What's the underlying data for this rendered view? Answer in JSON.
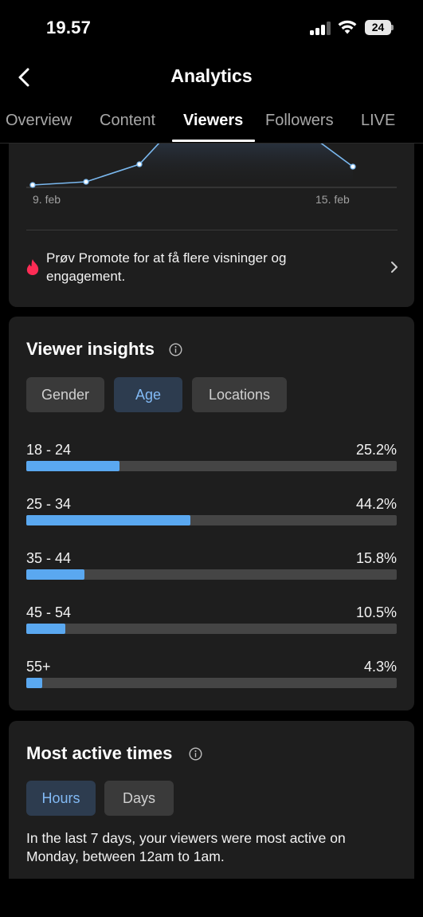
{
  "status_bar": {
    "time": "19.57",
    "battery": "24"
  },
  "header": {
    "title": "Analytics"
  },
  "tabs": [
    {
      "label": "Overview",
      "active": false
    },
    {
      "label": "Content",
      "active": false
    },
    {
      "label": "Viewers",
      "active": true
    },
    {
      "label": "Followers",
      "active": false
    },
    {
      "label": "LIVE",
      "active": false
    }
  ],
  "trend_chart": {
    "x_start_label": "9. feb",
    "x_end_label": "15. feb"
  },
  "promote": {
    "text": "Prøv Promote for at få flere visninger og engagement."
  },
  "viewer_insights": {
    "title": "Viewer insights",
    "chips": [
      {
        "label": "Gender",
        "active": false
      },
      {
        "label": "Age",
        "active": true
      },
      {
        "label": "Locations",
        "active": false
      }
    ],
    "age_groups": [
      {
        "label": "18 - 24",
        "percent_text": "25.2%",
        "value": 25.2
      },
      {
        "label": "25 - 34",
        "percent_text": "44.2%",
        "value": 44.2
      },
      {
        "label": "35 - 44",
        "percent_text": "15.8%",
        "value": 15.8
      },
      {
        "label": "45 - 54",
        "percent_text": "10.5%",
        "value": 10.5
      },
      {
        "label": "55+",
        "percent_text": "4.3%",
        "value": 4.3
      }
    ]
  },
  "most_active": {
    "title": "Most active times",
    "chips": [
      {
        "label": "Hours",
        "active": true
      },
      {
        "label": "Days",
        "active": false
      }
    ],
    "description": "In the last 7 days, your viewers were most active on Monday, between 12am to 1am."
  },
  "colors": {
    "accent_blue": "#5aa8f0",
    "chip_active_bg": "#2d3c4f",
    "chip_active_text": "#82baf5",
    "card_bg": "#1e1e1e",
    "flame_red": "#fe2c55"
  }
}
